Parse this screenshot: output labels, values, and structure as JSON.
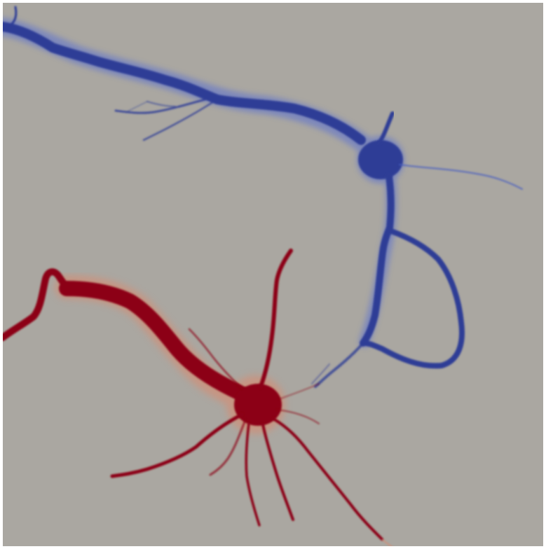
{
  "scene": {
    "subject": "two-neurons-microscopy",
    "colors": {
      "background": "#aaa7a1",
      "frame": "#ffffff",
      "neuron_blue": "#2f3d96",
      "neuron_blue_halo": "#5a6fd0",
      "neuron_red": "#8c0016",
      "neuron_red_halo": "#d98a70"
    }
  }
}
